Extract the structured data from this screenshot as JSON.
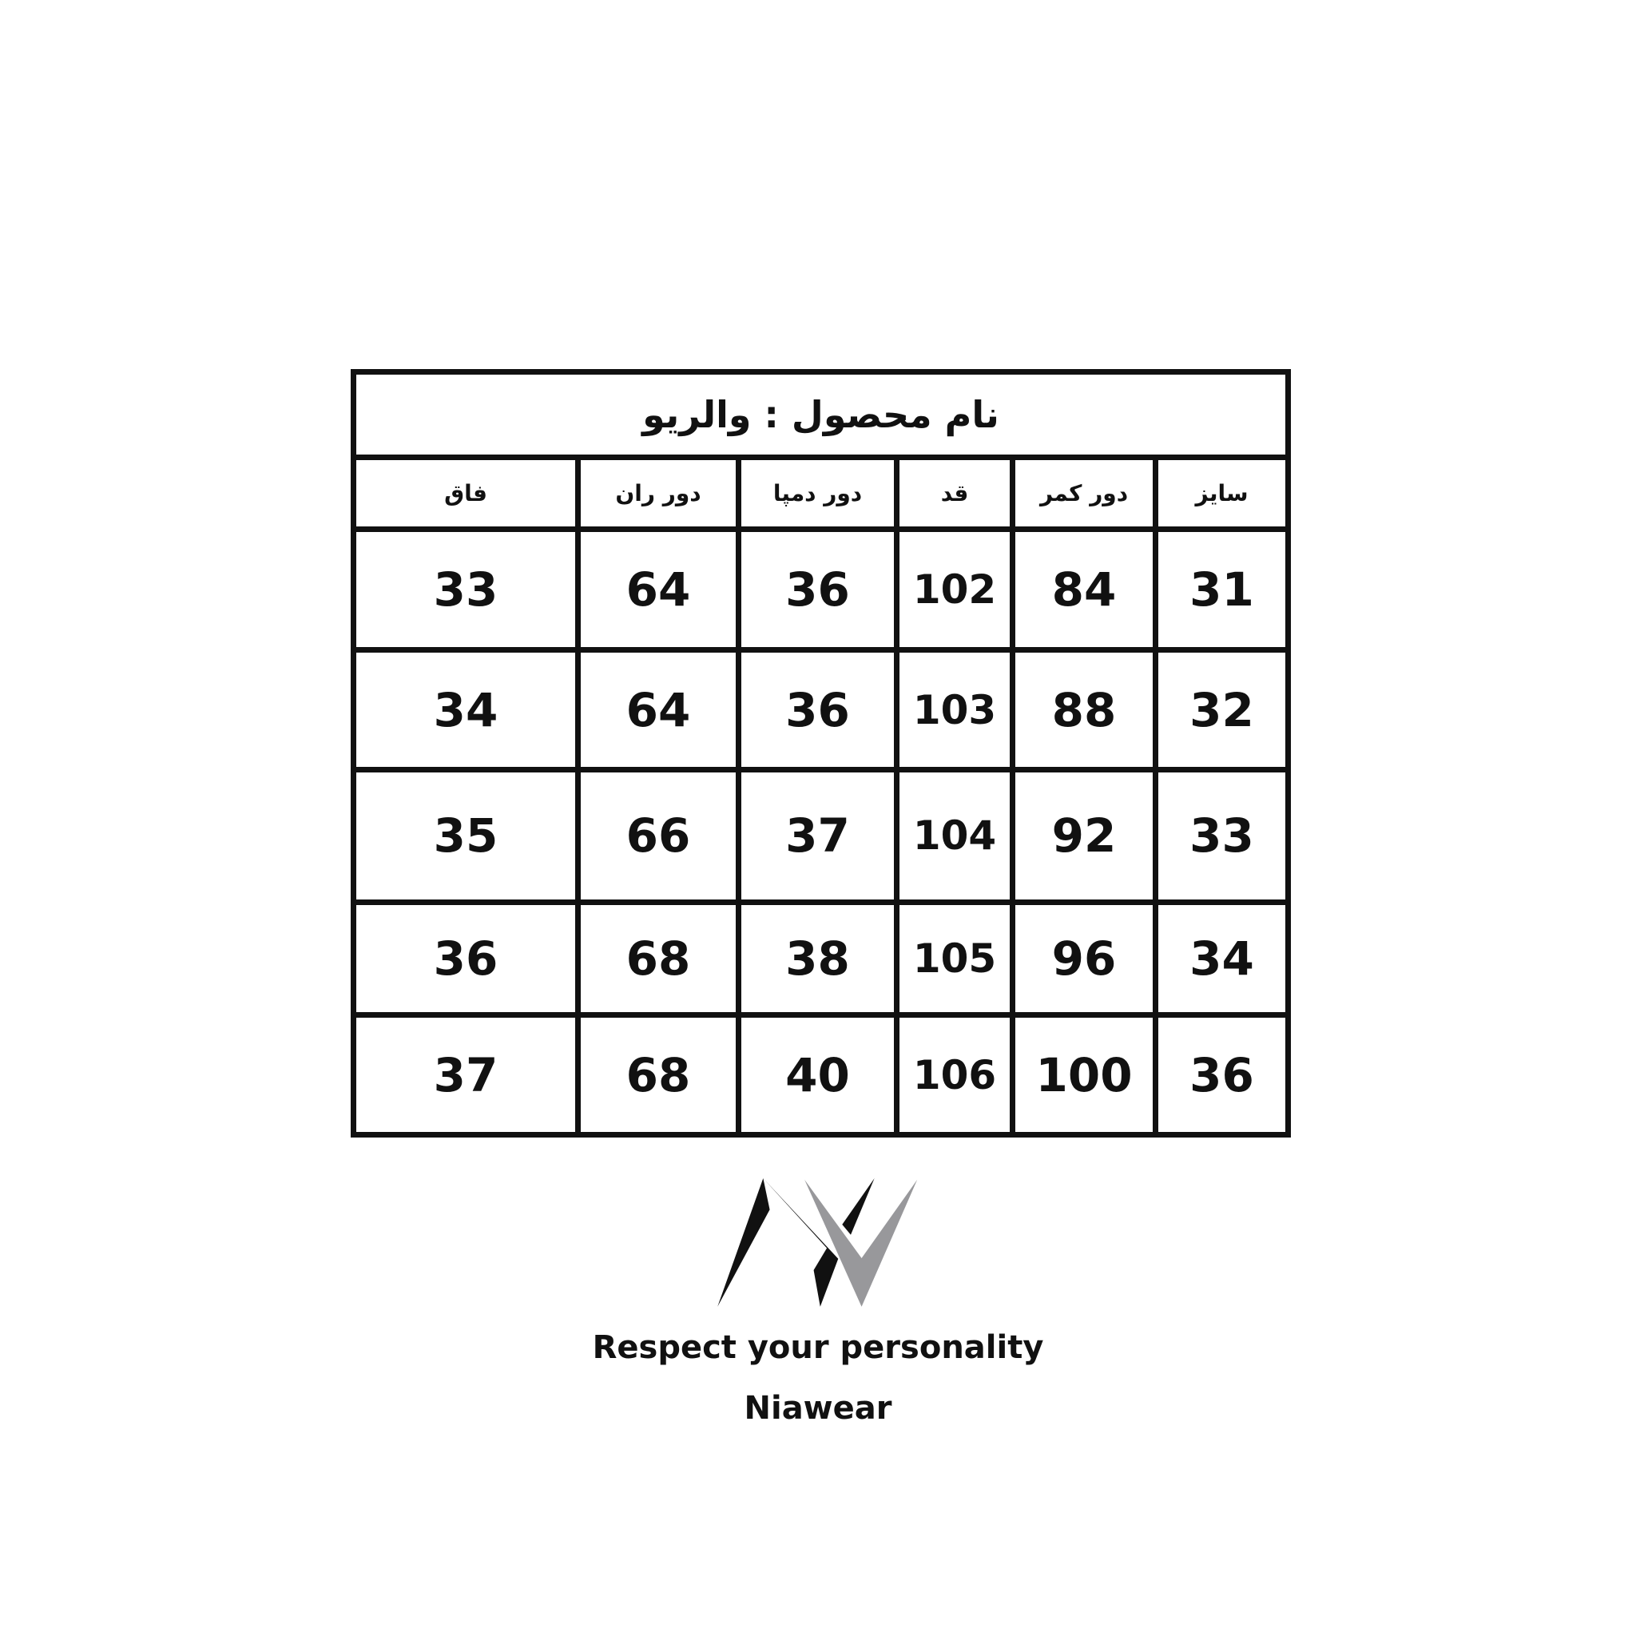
{
  "title": "نام محصول : والریو",
  "columns": [
    "سایز",
    "دور کمر",
    "قد",
    "دور دمپا",
    "دور ران",
    "فاق"
  ],
  "rows": [
    [
      "31",
      "84",
      "102",
      "36",
      "64",
      "33"
    ],
    [
      "32",
      "88",
      "103",
      "36",
      "64",
      "34"
    ],
    [
      "33",
      "92",
      "104",
      "37",
      "66",
      "35"
    ],
    [
      "34",
      "96",
      "105",
      "38",
      "68",
      "36"
    ],
    [
      "36",
      "100",
      "106",
      "40",
      "68",
      "37"
    ]
  ],
  "brand": {
    "logo_text": "NW",
    "slogan": "Respect your personality",
    "name": "Niawear",
    "colors": {
      "dark": "#111111",
      "gray": "#98989b"
    }
  }
}
